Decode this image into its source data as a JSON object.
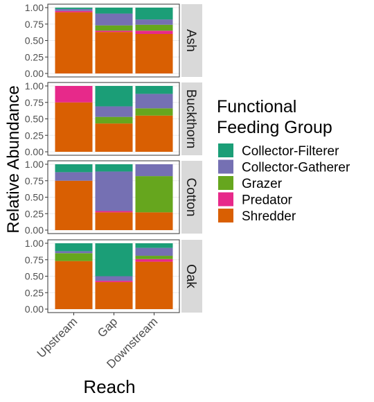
{
  "chart_data": {
    "type": "bar",
    "stacked": true,
    "facet_by": "stream",
    "xlabel": "Reach",
    "ylabel": "Relative Abundance",
    "ylim": [
      0,
      1
    ],
    "yticks": [
      "0.00",
      "0.25",
      "0.50",
      "0.75",
      "1.00"
    ],
    "categories": [
      "Upstream",
      "Gap",
      "Downstream"
    ],
    "legend": {
      "title_lines": [
        "Functional",
        "Feeding Group"
      ],
      "position": "right"
    },
    "groups": [
      {
        "name": "Collector-Filterer",
        "color": "#1b9e77"
      },
      {
        "name": "Collector-Gatherer",
        "color": "#7570b3"
      },
      {
        "name": "Grazer",
        "color": "#66a61e"
      },
      {
        "name": "Predator",
        "color": "#e7298a"
      },
      {
        "name": "Shredder",
        "color": "#d95f02"
      }
    ],
    "panels": [
      {
        "label": "Ash",
        "bars": [
          {
            "category": "Upstream",
            "values": {
              "Shredder": 0.93,
              "Predator": 0.02,
              "Grazer": 0.0,
              "Collector-Gatherer": 0.03,
              "Collector-Filterer": 0.02
            }
          },
          {
            "category": "Gap",
            "values": {
              "Shredder": 0.63,
              "Predator": 0.02,
              "Grazer": 0.08,
              "Collector-Gatherer": 0.18,
              "Collector-Filterer": 0.09
            }
          },
          {
            "category": "Downstream",
            "values": {
              "Shredder": 0.6,
              "Predator": 0.05,
              "Grazer": 0.09,
              "Collector-Gatherer": 0.08,
              "Collector-Filterer": 0.18
            }
          }
        ]
      },
      {
        "label": "Buckthorn",
        "bars": [
          {
            "category": "Upstream",
            "values": {
              "Shredder": 0.75,
              "Predator": 0.25,
              "Grazer": 0.0,
              "Collector-Gatherer": 0.0,
              "Collector-Filterer": 0.0
            }
          },
          {
            "category": "Gap",
            "values": {
              "Shredder": 0.43,
              "Predator": 0.0,
              "Grazer": 0.1,
              "Collector-Gatherer": 0.16,
              "Collector-Filterer": 0.31
            }
          },
          {
            "category": "Downstream",
            "values": {
              "Shredder": 0.55,
              "Predator": 0.0,
              "Grazer": 0.11,
              "Collector-Gatherer": 0.22,
              "Collector-Filterer": 0.12
            }
          }
        ]
      },
      {
        "label": "Cotton",
        "bars": [
          {
            "category": "Upstream",
            "values": {
              "Shredder": 0.75,
              "Predator": 0.0,
              "Grazer": 0.0,
              "Collector-Gatherer": 0.13,
              "Collector-Filterer": 0.12
            }
          },
          {
            "category": "Gap",
            "values": {
              "Shredder": 0.27,
              "Predator": 0.02,
              "Grazer": 0.0,
              "Collector-Gatherer": 0.6,
              "Collector-Filterer": 0.11
            }
          },
          {
            "category": "Downstream",
            "values": {
              "Shredder": 0.27,
              "Predator": 0.0,
              "Grazer": 0.55,
              "Collector-Gatherer": 0.18,
              "Collector-Filterer": 0.0
            }
          }
        ]
      },
      {
        "label": "Oak",
        "bars": [
          {
            "category": "Upstream",
            "values": {
              "Shredder": 0.73,
              "Predator": 0.0,
              "Grazer": 0.12,
              "Collector-Gatherer": 0.03,
              "Collector-Filterer": 0.12
            }
          },
          {
            "category": "Gap",
            "values": {
              "Shredder": 0.41,
              "Predator": 0.02,
              "Grazer": 0.0,
              "Collector-Gatherer": 0.07,
              "Collector-Filterer": 0.5
            }
          },
          {
            "category": "Downstream",
            "values": {
              "Shredder": 0.72,
              "Predator": 0.04,
              "Grazer": 0.05,
              "Collector-Gatherer": 0.12,
              "Collector-Filterer": 0.07
            }
          }
        ]
      }
    ]
  }
}
